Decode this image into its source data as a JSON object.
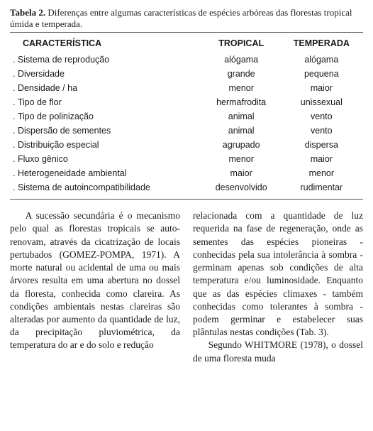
{
  "table": {
    "label": "Tabela 2.",
    "caption_rest": " Diferenças entre algumas características de espécies arbóreas das florestas tropical úmida e temperada.",
    "headers": [
      "CARACTERÍSTICA",
      "TROPICAL",
      "TEMPERADA"
    ],
    "rows": [
      [
        ". Sistema de reprodução",
        "alógama",
        "alógama"
      ],
      [
        ". Diversidade",
        "grande",
        "pequena"
      ],
      [
        ". Densidade / ha",
        "menor",
        "maior"
      ],
      [
        ". Tipo de flor",
        "hermafrodita",
        "unissexual"
      ],
      [
        ". Tipo de polinização",
        "animal",
        "vento"
      ],
      [
        ". Dispersão de sementes",
        "animal",
        "vento"
      ],
      [
        ". Distribuição especial",
        "agrupado",
        "dispersa"
      ],
      [
        ". Fluxo gênico",
        "menor",
        "maior"
      ],
      [
        ". Heterogeneidade ambiental",
        "maior",
        "menor"
      ],
      [
        ". Sistema de autoincompatibilidade",
        "desenvolvido",
        "rudimentar"
      ]
    ]
  },
  "body": {
    "p1": "A sucessão secundária é o mecanismo pelo qual as florestas tropicais se auto-renovam, através da cicatrização de locais pertubados (GOMEZ-POMPA, 1971). A morte natural ou acidental de uma ou mais árvores resulta em uma abertura no dossel da floresta, conhecida como clareira. As condições ambientais nestas clareiras são alteradas por aumento da quantidade de luz, da precipitação pluviométrica, da temperatura do ar e do solo e redução",
    "p1b": "relacionada com a quantidade de luz requerida na fase de regeneração, onde as sementes das espécies pioneiras - conhecidas pela sua intolerância à sombra - germinam apenas sob condições de alta temperatura e/ou luminosidade. Enquanto que as das espécies climaxes - também conhecidas como tolerantes à sombra - podem germinar e estabelecer suas plântulas nestas condições (Tab. 3).",
    "p2": "Segundo WHITMORE (1978), o dossel de uma floresta muda"
  }
}
